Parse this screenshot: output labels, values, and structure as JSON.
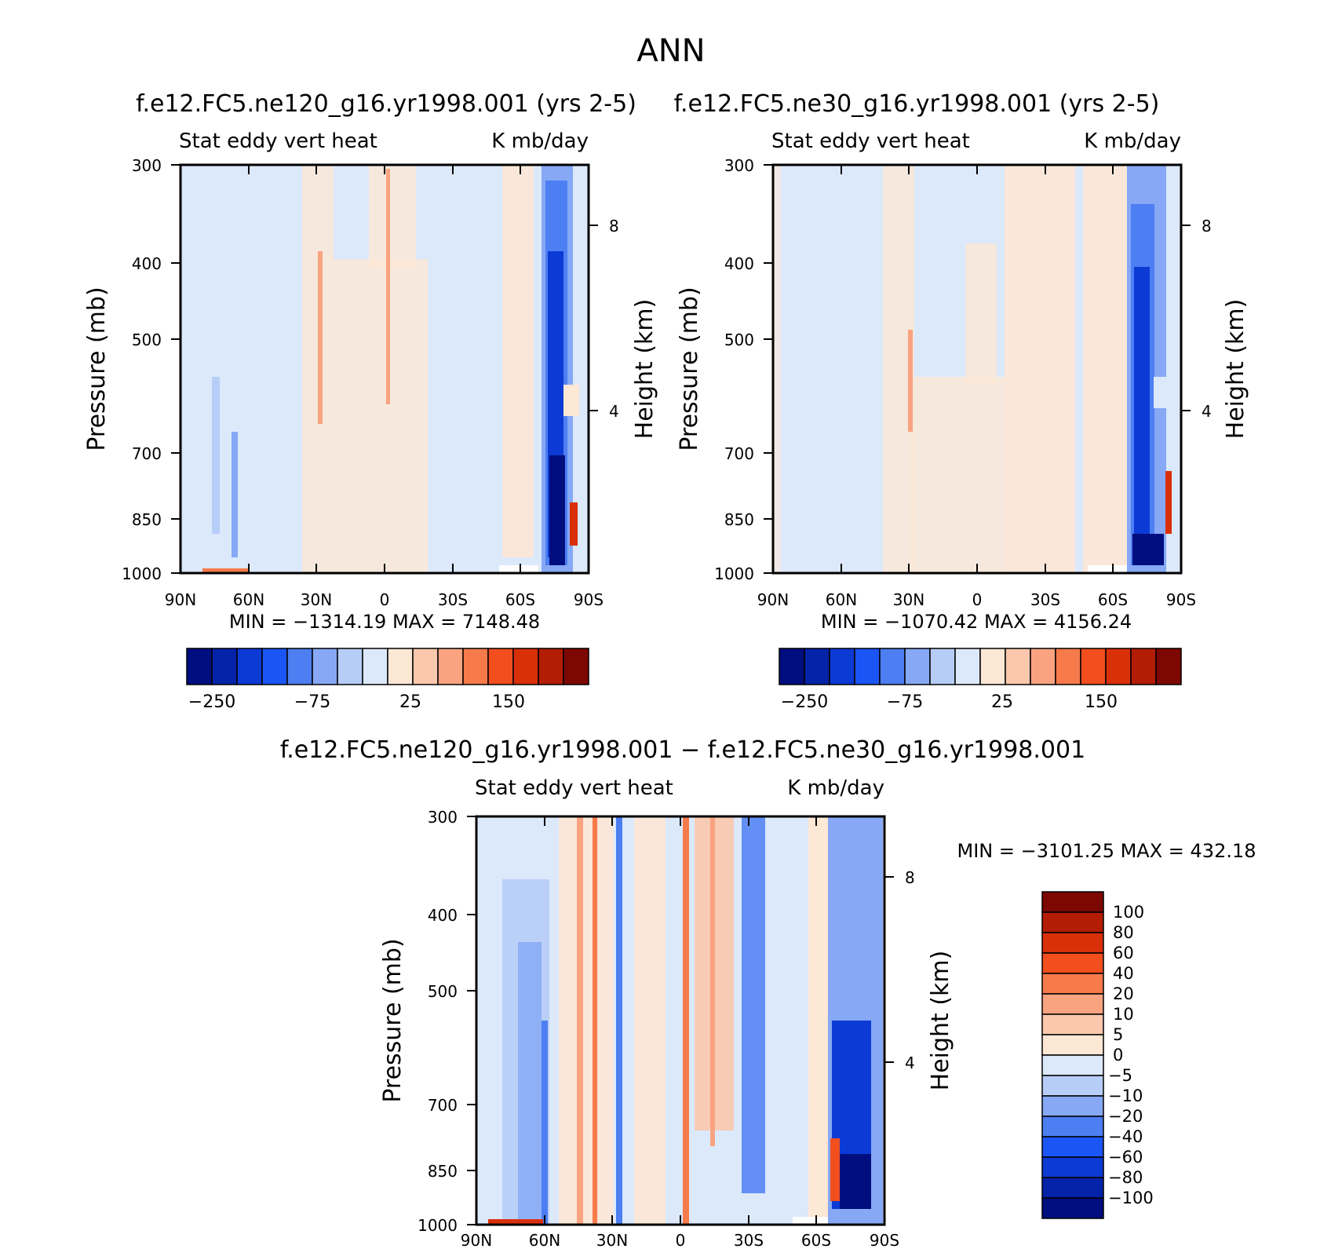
{
  "title": "ANN",
  "colors": {
    "scale13": [
      "#000e7f",
      "#0523a8",
      "#0c3ad5",
      "#1b55f5",
      "#4d7ef2",
      "#86a8f5",
      "#b6cdf7",
      "#dbe9fb",
      "#fde7d5",
      "#fbc8ad",
      "#f9a381",
      "#f77a4b",
      "#f24e1e",
      "#d9300a",
      "#b41d05",
      "#7d0703"
    ],
    "diff": [
      "#000e7f",
      "#0523a8",
      "#0c3ad5",
      "#1b55f5",
      "#4d7ef2",
      "#86a8f5",
      "#b6cdf7",
      "#dbe9fb",
      "#fde7d5",
      "#fbc8ad",
      "#f9a381",
      "#f77a4b",
      "#f24e1e",
      "#d9300a",
      "#b41d05",
      "#7d0703"
    ]
  },
  "chart_data": [
    {
      "type": "heatmap",
      "title": "f.e12.FC5.ne120_g16.yr1998.001 (yrs 2-5)",
      "subtitle_left": "Stat eddy vert heat",
      "subtitle_right": "K mb/day",
      "ylabel": "Pressure (mb)",
      "y2label": "Height (km)",
      "x_ticks": [
        "90N",
        "60N",
        "30N",
        "0",
        "30S",
        "60S",
        "90S"
      ],
      "y_ticks": [
        "300",
        "400",
        "500",
        "700",
        "850",
        "1000"
      ],
      "y2_ticks": [
        "8",
        "4"
      ],
      "ylim": [
        1000,
        300
      ],
      "stats": "MIN = −1314.19   MAX = 7148.48",
      "colorbar_labels": [
        "−250",
        "−75",
        "25",
        "150"
      ]
    },
    {
      "type": "heatmap",
      "title": "f.e12.FC5.ne30_g16.yr1998.001 (yrs 2-5)",
      "subtitle_left": "Stat eddy vert heat",
      "subtitle_right": "K mb/day",
      "ylabel": "Pressure (mb)",
      "y2label": "Height (km)",
      "x_ticks": [
        "90N",
        "60N",
        "30N",
        "0",
        "30S",
        "60S",
        "90S"
      ],
      "y_ticks": [
        "300",
        "400",
        "500",
        "700",
        "850",
        "1000"
      ],
      "y2_ticks": [
        "8",
        "4"
      ],
      "ylim": [
        1000,
        300
      ],
      "stats": "MIN = −1070.42   MAX = 4156.24",
      "colorbar_labels": [
        "−250",
        "−75",
        "25",
        "150"
      ]
    },
    {
      "type": "heatmap",
      "title": "f.e12.FC5.ne120_g16.yr1998.001 − f.e12.FC5.ne30_g16.yr1998.001",
      "subtitle_left": "Stat eddy vert heat",
      "subtitle_right": "K mb/day",
      "ylabel": "Pressure (mb)",
      "y2label": "Height (km)",
      "x_ticks": [
        "90N",
        "60N",
        "30N",
        "0",
        "30S",
        "60S",
        "90S"
      ],
      "y_ticks": [
        "300",
        "400",
        "500",
        "700",
        "850",
        "1000"
      ],
      "y2_ticks": [
        "8",
        "4"
      ],
      "ylim": [
        1000,
        300
      ],
      "stats": "MIN = −3101.25   MAX = 432.18",
      "colorbar_labels": [
        "100",
        "80",
        "60",
        "40",
        "20",
        "10",
        "5",
        "0",
        "−5",
        "−10",
        "−20",
        "−40",
        "−60",
        "−80",
        "−100"
      ]
    }
  ]
}
